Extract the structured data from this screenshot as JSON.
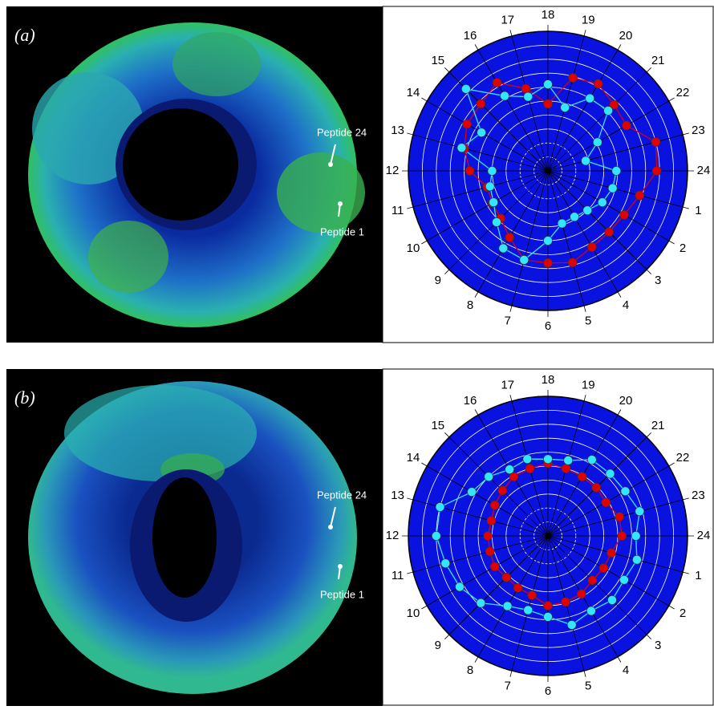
{
  "chart_data": [
    {
      "type": "polar",
      "panel_label": "(a)",
      "annotations": [
        "Peptide 24",
        "Peptide 1"
      ],
      "categories": [
        "1",
        "2",
        "3",
        "4",
        "5",
        "6",
        "7",
        "8",
        "9",
        "10",
        "11",
        "12",
        "13",
        "14",
        "15",
        "16",
        "17",
        "18",
        "19",
        "20",
        "21",
        "22",
        "23",
        "24"
      ],
      "rlim": [
        0,
        10
      ],
      "rticks": [
        1,
        2,
        3,
        4,
        5,
        6,
        7,
        8,
        9
      ],
      "grid": true,
      "series": [
        {
          "color": "#e00000",
          "values": [
            6.8,
            6.3,
            6.2,
            6.3,
            6.8,
            6.6,
            6.6,
            5.5,
            4.8,
            4.6,
            4.5,
            5.6,
            6.2,
            6.7,
            6.8,
            7.3,
            6.1,
            4.8,
            6.9,
            7.2,
            6.7,
            6.5,
            8.0,
            7.8
          ]
        },
        {
          "color": "#33e6ff",
          "values": [
            4.8,
            4.5,
            4.0,
            3.8,
            3.9,
            5.0,
            6.6,
            6.4,
            5.2,
            4.5,
            4.3,
            4.0,
            6.4,
            5.5,
            8.3,
            6.2,
            5.5,
            6.2,
            4.7,
            6.0,
            6.1,
            4.1,
            2.8,
            4.9
          ]
        }
      ]
    },
    {
      "type": "polar",
      "panel_label": "(b)",
      "annotations": [
        "Peptide 24",
        "Peptide 1"
      ],
      "categories": [
        "1",
        "2",
        "3",
        "4",
        "5",
        "6",
        "7",
        "8",
        "9",
        "10",
        "11",
        "12",
        "13",
        "14",
        "15",
        "16",
        "17",
        "18",
        "19",
        "20",
        "21",
        "22",
        "23",
        "24"
      ],
      "rlim": [
        0,
        10
      ],
      "rticks": [
        1,
        2,
        3,
        4,
        5,
        6,
        7,
        8,
        9
      ],
      "grid": true,
      "series": [
        {
          "color": "#e00000",
          "values": [
            4.7,
            4.6,
            4.5,
            4.8,
            4.9,
            5.0,
            4.4,
            4.3,
            4.2,
            4.4,
            4.3,
            4.3,
            4.2,
            4.4,
            4.6,
            4.9,
            5.0,
            5.2,
            5.0,
            4.9,
            4.9,
            4.8,
            5.3,
            5.3
          ]
        },
        {
          "color": "#33e6ff",
          "values": [
            6.6,
            6.3,
            6.5,
            6.2,
            6.6,
            5.8,
            5.5,
            5.8,
            6.8,
            7.3,
            7.6,
            8.0,
            8.0,
            6.3,
            6.0,
            5.5,
            5.7,
            5.5,
            5.6,
            6.3,
            6.3,
            6.4,
            6.8,
            6.3
          ]
        }
      ]
    }
  ]
}
